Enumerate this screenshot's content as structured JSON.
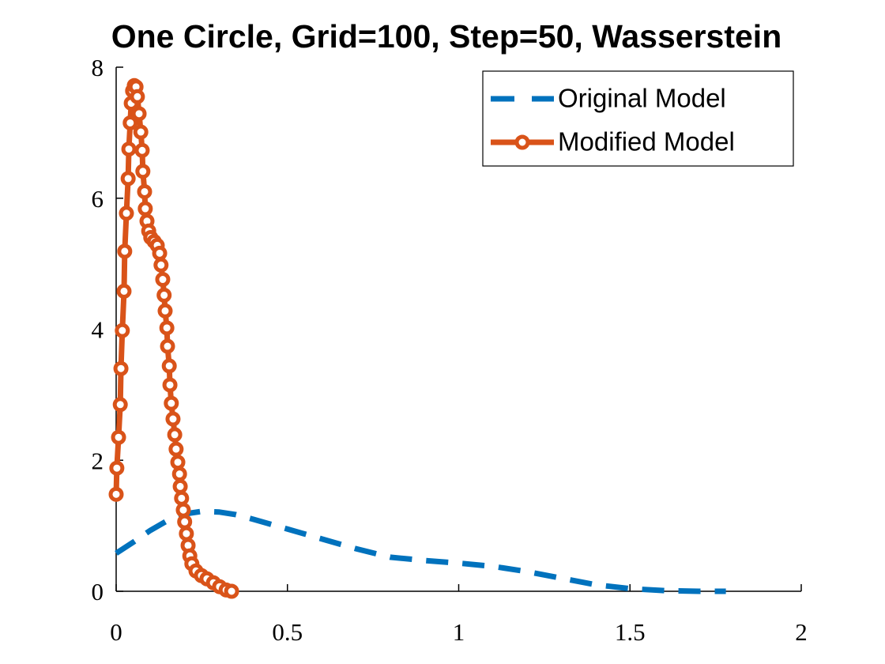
{
  "chart_data": {
    "type": "line",
    "title": "One Circle, Grid=100, Step=50, Wasserstein",
    "xlim": [
      0,
      2
    ],
    "xticks": [
      0,
      0.5,
      1,
      1.5,
      2
    ],
    "ylim": [
      0,
      8
    ],
    "yticks": [
      0,
      2,
      4,
      6,
      8
    ],
    "legend": "top-right",
    "series": [
      {
        "name": "Original Model",
        "color": "#0072bd",
        "linestyle": "dashed",
        "marker": "none",
        "x": [
          0,
          0.05,
          0.1,
          0.15,
          0.2,
          0.25,
          0.3,
          0.35,
          0.4,
          0.5,
          0.6,
          0.7,
          0.8,
          0.9,
          1.0,
          1.1,
          1.2,
          1.3,
          1.4,
          1.5,
          1.6,
          1.7,
          1.78
        ],
        "values": [
          0.58,
          0.75,
          0.93,
          1.08,
          1.18,
          1.22,
          1.21,
          1.17,
          1.1,
          0.95,
          0.8,
          0.65,
          0.52,
          0.47,
          0.43,
          0.38,
          0.3,
          0.2,
          0.1,
          0.04,
          0.01,
          0.0,
          0.0
        ]
      },
      {
        "name": "Modified Model",
        "color": "#d95319",
        "linestyle": "solid",
        "marker": "circle",
        "x": [
          0,
          0.002,
          0.007,
          0.012,
          0.014,
          0.018,
          0.023,
          0.025,
          0.03,
          0.035,
          0.037,
          0.041,
          0.044,
          0.048,
          0.053,
          0.058,
          0.062,
          0.067,
          0.072,
          0.076,
          0.078,
          0.083,
          0.085,
          0.09,
          0.095,
          0.101,
          0.111,
          0.12,
          0.127,
          0.131,
          0.136,
          0.14,
          0.143,
          0.148,
          0.15,
          0.155,
          0.157,
          0.161,
          0.166,
          0.171,
          0.175,
          0.18,
          0.185,
          0.187,
          0.191,
          0.196,
          0.2,
          0.205,
          0.21,
          0.215,
          0.221,
          0.233,
          0.249,
          0.265,
          0.284,
          0.302,
          0.321,
          0.337
        ],
        "values": [
          1.48,
          1.88,
          2.35,
          2.85,
          3.4,
          3.98,
          4.58,
          5.19,
          5.77,
          6.3,
          6.75,
          7.15,
          7.45,
          7.64,
          7.72,
          7.7,
          7.55,
          7.29,
          7.01,
          6.73,
          6.41,
          6.1,
          5.84,
          5.65,
          5.5,
          5.4,
          5.34,
          5.28,
          5.16,
          4.98,
          4.76,
          4.52,
          4.28,
          4.02,
          3.74,
          3.44,
          3.15,
          2.87,
          2.63,
          2.39,
          2.17,
          1.97,
          1.79,
          1.6,
          1.42,
          1.24,
          1.06,
          0.88,
          0.7,
          0.54,
          0.42,
          0.31,
          0.24,
          0.19,
          0.13,
          0.07,
          0.02,
          0.0
        ]
      }
    ]
  }
}
